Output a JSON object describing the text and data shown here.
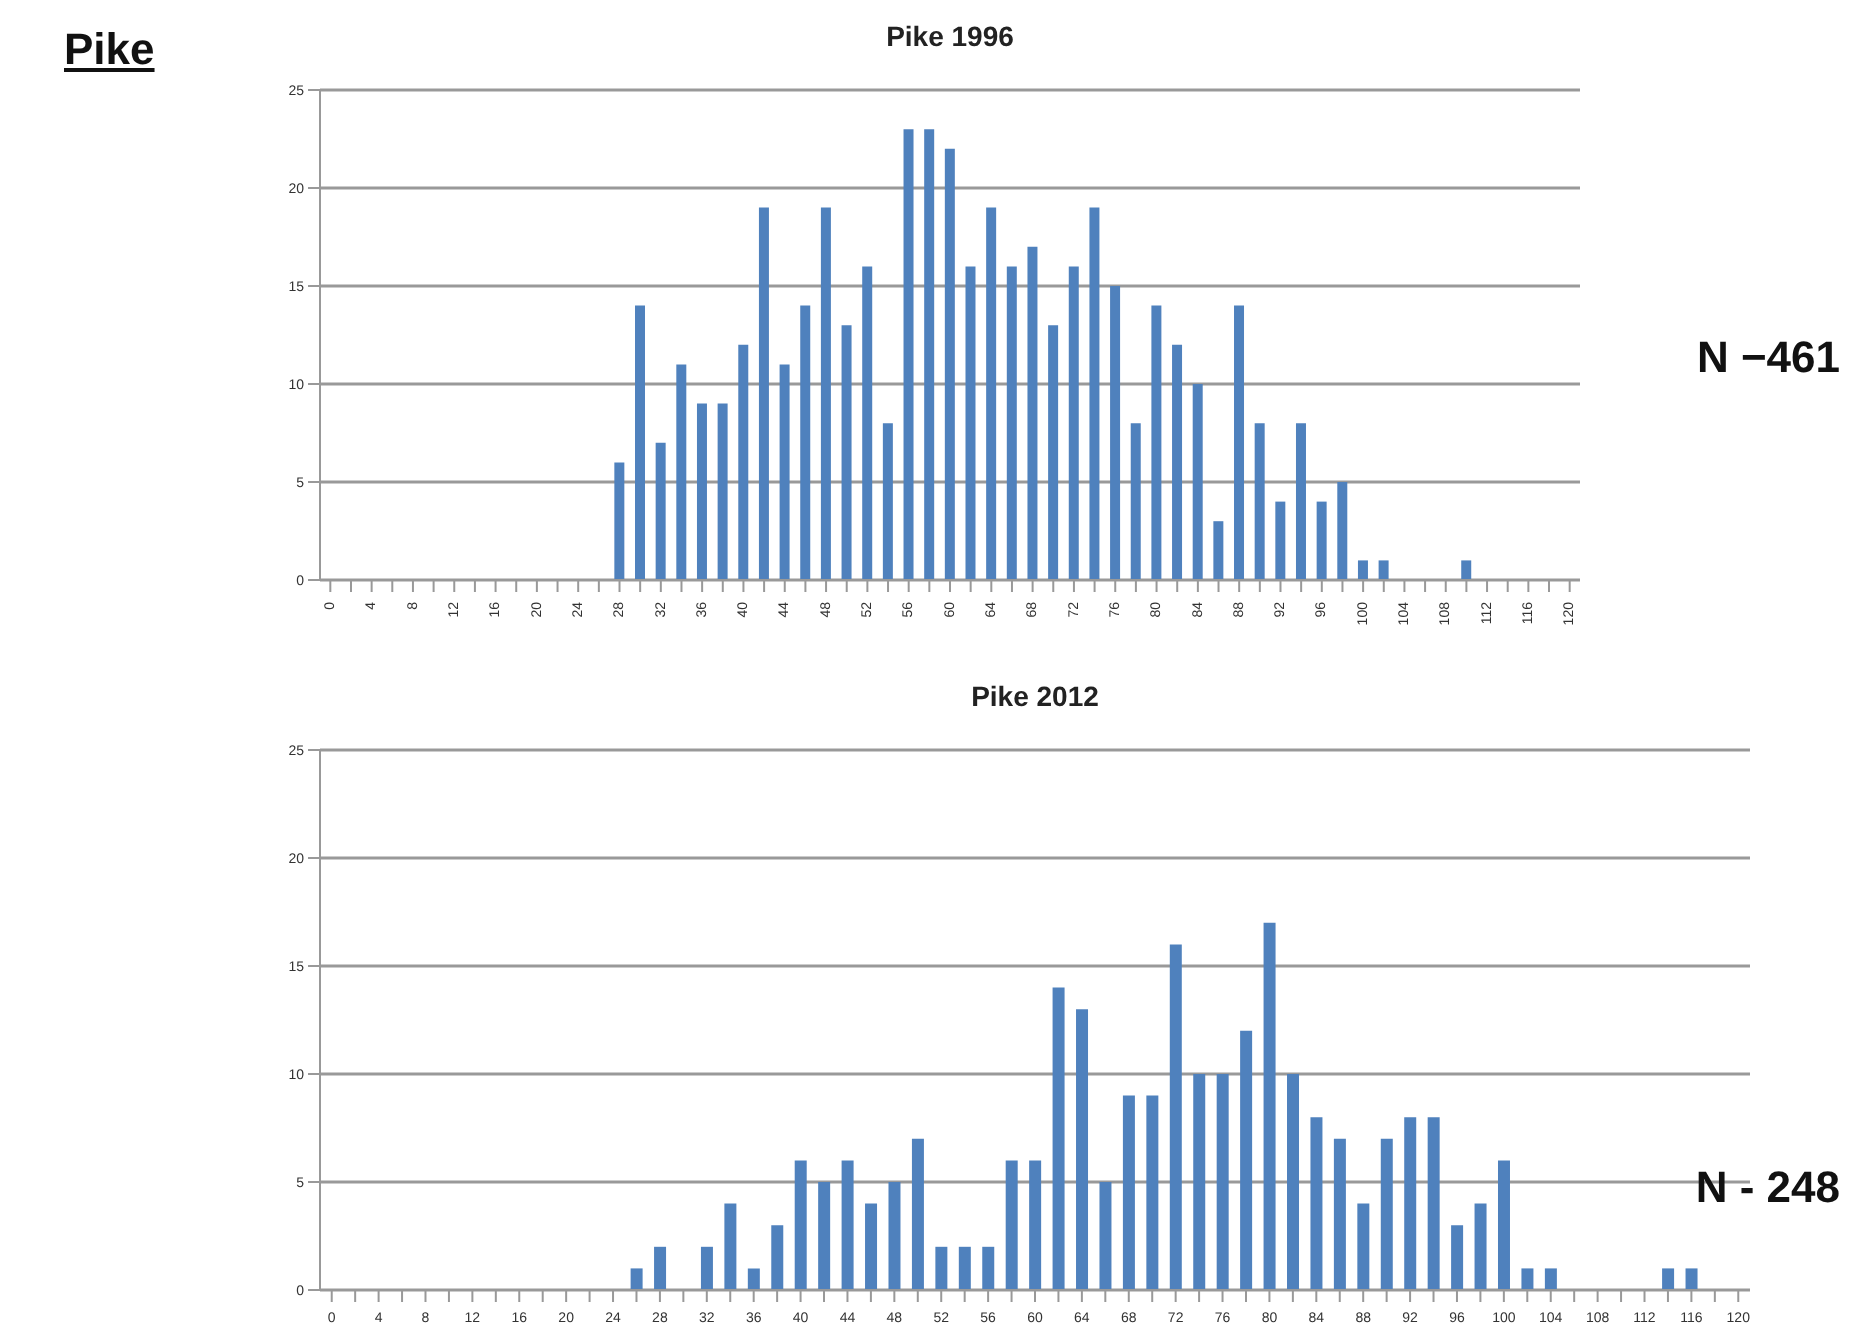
{
  "chart_data": [
    {
      "type": "bar",
      "title": "Pike 1996",
      "annotations": [
        "Pike",
        "N −461"
      ],
      "color": "#4f81bd",
      "grid": "y",
      "ylim": [
        0,
        25
      ],
      "yticks": [
        0,
        5,
        10,
        15,
        20,
        25
      ],
      "categories": [
        "0",
        null,
        "4",
        null,
        "8",
        null,
        "12",
        null,
        "16",
        null,
        "20",
        null,
        "24",
        null,
        "28",
        null,
        "32",
        null,
        "36",
        null,
        "40",
        null,
        "44",
        null,
        "48",
        null,
        "52",
        null,
        "56",
        null,
        "60",
        null,
        "64",
        null,
        "68",
        null,
        "72",
        null,
        "76",
        null,
        "80",
        null,
        "84",
        null,
        "88",
        null,
        "92",
        null,
        "96",
        null,
        "100",
        null,
        "104",
        null,
        "108",
        null,
        "112",
        null,
        "116",
        null,
        "120"
      ],
      "values": [
        0,
        0,
        0,
        0,
        0,
        0,
        0,
        0,
        0,
        0,
        0,
        0,
        0,
        0,
        6,
        14,
        7,
        11,
        9,
        9,
        12,
        19,
        11,
        14,
        19,
        13,
        16,
        8,
        23,
        23,
        22,
        16,
        19,
        16,
        17,
        13,
        16,
        19,
        15,
        8,
        14,
        12,
        10,
        3,
        14,
        8,
        4,
        8,
        4,
        5,
        1,
        1,
        0,
        0,
        0,
        1,
        0,
        0,
        0,
        0,
        0
      ]
    },
    {
      "type": "bar",
      "title": "Pike 2012",
      "annotations": [
        "N - 248"
      ],
      "color": "#4f81bd",
      "grid": "y",
      "ylim": [
        0,
        25
      ],
      "yticks": [
        0,
        5,
        10,
        15,
        20,
        25
      ],
      "categories": [
        "0",
        null,
        "4",
        null,
        "8",
        null,
        "12",
        null,
        "16",
        null,
        "20",
        null,
        "24",
        null,
        "28",
        null,
        "32",
        null,
        "36",
        null,
        "40",
        null,
        "44",
        null,
        "48",
        null,
        "52",
        null,
        "56",
        null,
        "60",
        null,
        "64",
        null,
        "68",
        null,
        "72",
        null,
        "76",
        null,
        "80",
        null,
        "84",
        null,
        "88",
        null,
        "92",
        null,
        "96",
        null,
        "100",
        null,
        "104",
        null,
        "108",
        null,
        "112",
        null,
        "116",
        null,
        "120"
      ],
      "values": [
        0,
        0,
        0,
        0,
        0,
        0,
        0,
        0,
        0,
        0,
        0,
        0,
        0,
        1,
        2,
        0,
        2,
        4,
        1,
        3,
        6,
        5,
        6,
        4,
        5,
        7,
        2,
        2,
        2,
        6,
        6,
        14,
        13,
        5,
        9,
        9,
        16,
        10,
        10,
        12,
        17,
        10,
        8,
        7,
        4,
        7,
        8,
        8,
        3,
        4,
        6,
        1,
        1,
        0,
        0,
        0,
        0,
        1,
        1,
        0,
        0
      ]
    }
  ]
}
